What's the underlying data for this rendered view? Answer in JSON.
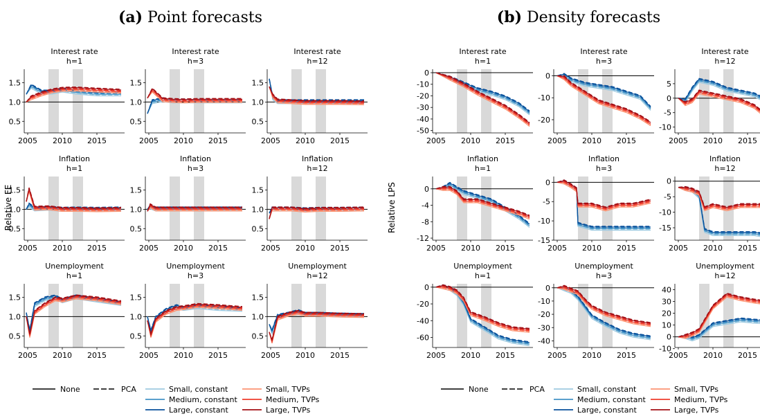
{
  "panel_titles": [
    {
      "tag": "(a)",
      "text": "Point forecasts"
    },
    {
      "tag": "(b)",
      "text": "Density forecasts"
    }
  ],
  "horizon_labels": [
    "h=1",
    "h=3",
    "h=12"
  ],
  "x_ticks": [
    "2005",
    "2010",
    "2015"
  ],
  "legend": {
    "methods": [
      "None",
      "PCA"
    ],
    "models": [
      {
        "label": "Small, constant",
        "color": "#9ecae1"
      },
      {
        "label": "Medium, constant",
        "color": "#4292c6"
      },
      {
        "label": "Large, constant",
        "color": "#08519c"
      },
      {
        "label": "Small, TVPs",
        "color": "#fc9272"
      },
      {
        "label": "Medium, TVPs",
        "color": "#ef3b2c"
      },
      {
        "label": "Large, TVPs",
        "color": "#a50f15"
      }
    ]
  },
  "recession_shading": [
    [
      2008.0,
      2009.5
    ],
    [
      2011.5,
      2013.0
    ]
  ],
  "chart_data": [
    {
      "type": "line",
      "panel": "(a) Point forecasts",
      "ylabel": "Relative FE",
      "xlim": [
        2004.5,
        2019
      ],
      "rows": [
        {
          "variable": "Interest rate",
          "ylim": [
            0.2,
            1.85
          ],
          "yticks": [
            "0.5",
            "1.0",
            "1.5"
          ],
          "ytick_values": [
            0.5,
            1.0,
            1.5
          ],
          "baseline": 1.0,
          "horizons": [
            {
              "h": "h=1",
              "x": [
                2004.8,
                2005.5,
                2007,
                2008.5,
                2010,
                2012,
                2015,
                2018.5
              ],
              "blue": [
                1.2,
                1.4,
                1.25,
                1.25,
                1.3,
                1.25,
                1.2,
                1.2
              ],
              "red": [
                1.0,
                1.1,
                1.2,
                1.28,
                1.32,
                1.33,
                1.3,
                1.27
              ]
            },
            {
              "h": "h=3",
              "x": [
                2004.8,
                2005.5,
                2007,
                2008.5,
                2010,
                2012,
                2015,
                2018.5
              ],
              "blue": [
                0.7,
                1.0,
                1.05,
                1.02,
                1.02,
                1.02,
                1.02,
                1.02
              ],
              "red": [
                1.1,
                1.3,
                1.05,
                1.03,
                1.02,
                1.03,
                1.03,
                1.03
              ]
            },
            {
              "h": "h=12",
              "x": [
                2004.8,
                2005.3,
                2006,
                2008,
                2010,
                2012,
                2015,
                2018.5
              ],
              "blue": [
                1.6,
                1.1,
                1.0,
                1.0,
                1.0,
                1.0,
                1.0,
                1.0
              ],
              "red": [
                1.4,
                1.15,
                1.02,
                1.0,
                0.98,
                0.98,
                0.98,
                0.97
              ]
            }
          ]
        },
        {
          "variable": "Inflation",
          "ylim": [
            0.2,
            1.85
          ],
          "yticks": [
            "0.5",
            "1.0",
            "1.5"
          ],
          "ytick_values": [
            0.5,
            1.0,
            1.5
          ],
          "baseline": 1.0,
          "horizons": [
            {
              "h": "h=1",
              "x": [
                2004.8,
                2005.2,
                2006,
                2008,
                2010,
                2012,
                2015,
                2018.5
              ],
              "blue": [
                1.0,
                1.1,
                1.0,
                1.02,
                0.99,
                1.0,
                0.99,
                1.0
              ],
              "red": [
                1.2,
                1.5,
                1.02,
                1.03,
                0.99,
                0.99,
                0.98,
                0.99
              ]
            },
            {
              "h": "h=3",
              "x": [
                2004.8,
                2005.2,
                2006,
                2008,
                2010,
                2012,
                2015,
                2018.5
              ],
              "blue": [
                1.0,
                1.05,
                1.0,
                1.0,
                1.0,
                1.0,
                1.0,
                1.0
              ],
              "red": [
                0.95,
                1.08,
                1.0,
                1.0,
                1.0,
                1.0,
                1.0,
                1.0
              ]
            },
            {
              "h": "h=12",
              "x": [
                2004.8,
                2005.2,
                2006,
                2008,
                2010,
                2012,
                2015,
                2018.5
              ],
              "blue": [
                0.9,
                1.0,
                1.0,
                1.0,
                0.98,
                0.99,
                0.99,
                1.0
              ],
              "red": [
                0.75,
                1.0,
                1.0,
                1.0,
                0.97,
                0.99,
                0.99,
                1.0
              ]
            }
          ]
        },
        {
          "variable": "Unemployment",
          "ylim": [
            0.2,
            1.85
          ],
          "yticks": [
            "0.5",
            "1.0",
            "1.5"
          ],
          "ytick_values": [
            0.5,
            1.0,
            1.5
          ],
          "baseline": 1.0,
          "horizons": [
            {
              "h": "h=1",
              "x": [
                2004.8,
                2005.3,
                2006,
                2007.5,
                2009,
                2010,
                2012,
                2015,
                2018.5
              ],
              "blue": [
                1.1,
                0.6,
                1.3,
                1.45,
                1.5,
                1.4,
                1.5,
                1.42,
                1.33
              ],
              "red": [
                1.0,
                0.5,
                1.1,
                1.3,
                1.45,
                1.42,
                1.5,
                1.45,
                1.35
              ]
            },
            {
              "h": "h=3",
              "x": [
                2004.8,
                2005.3,
                2006,
                2007.5,
                2009,
                2010,
                2012,
                2015,
                2018.5
              ],
              "blue": [
                1.0,
                0.6,
                0.95,
                1.15,
                1.25,
                1.2,
                1.25,
                1.2,
                1.18
              ],
              "red": [
                0.9,
                0.5,
                0.9,
                1.1,
                1.2,
                1.22,
                1.28,
                1.25,
                1.2
              ]
            },
            {
              "h": "h=12",
              "x": [
                2004.8,
                2005.2,
                2006,
                2007.5,
                2009,
                2010,
                2012,
                2015,
                2018.5
              ],
              "blue": [
                0.8,
                0.6,
                1.0,
                1.05,
                1.12,
                1.05,
                1.05,
                1.03,
                1.02
              ],
              "red": [
                0.6,
                0.35,
                0.95,
                1.05,
                1.1,
                1.05,
                1.05,
                1.03,
                1.02
              ]
            }
          ]
        }
      ]
    },
    {
      "type": "line",
      "panel": "(b) Density forecasts",
      "ylabel": "Relative LPS",
      "xlim": [
        2004.5,
        2019
      ],
      "rows": [
        {
          "variable": "Interest rate",
          "horizons": [
            {
              "h": "h=1",
              "ylim": [
                -52,
                3
              ],
              "yticks": [
                "0",
                "-10",
                "-20",
                "-30",
                "-40",
                "-50"
              ],
              "ytick_values": [
                0,
                -10,
                -20,
                -30,
                -40,
                -50
              ],
              "baseline": 0,
              "x": [
                2005,
                2007,
                2009,
                2011,
                2013,
                2015,
                2017,
                2018.5
              ],
              "blue": [
                0,
                -5,
                -10,
                -15,
                -18,
                -22,
                -28,
                -35
              ],
              "red": [
                0,
                -5,
                -11,
                -18,
                -24,
                -30,
                -38,
                -45
              ]
            },
            {
              "h": "h=3",
              "ylim": [
                -26,
                3
              ],
              "yticks": [
                "0",
                "-10",
                "-20"
              ],
              "ytick_values": [
                0,
                -10,
                -20
              ],
              "baseline": 0,
              "x": [
                2005,
                2006,
                2007,
                2009,
                2011,
                2013,
                2015,
                2017,
                2018.5
              ],
              "blue": [
                0,
                0,
                -2,
                -4,
                -5,
                -6,
                -8,
                -10,
                -15
              ],
              "red": [
                0,
                -1,
                -4,
                -8,
                -12,
                -14,
                -16,
                -19,
                -22
              ]
            },
            {
              "h": "h=12",
              "ylim": [
                -12,
                10
              ],
              "yticks": [
                "5",
                "0",
                "-5",
                "-10"
              ],
              "ytick_values": [
                5,
                0,
                -5,
                -10
              ],
              "baseline": 0,
              "x": [
                2005,
                2006,
                2007,
                2008,
                2010,
                2012,
                2014,
                2016,
                2018.5
              ],
              "blue": [
                0,
                -1,
                3,
                6,
                5,
                3,
                2,
                1,
                -2
              ],
              "red": [
                0,
                -2,
                -1,
                2,
                1,
                0,
                -1,
                -3,
                -8
              ]
            }
          ]
        },
        {
          "variable": "Inflation",
          "horizons": [
            {
              "h": "h=1",
              "ylim": [
                -12.5,
                3
              ],
              "yticks": [
                "0",
                "-4",
                "-8",
                "-12"
              ],
              "ytick_values": [
                0,
                -4,
                -8,
                -12
              ],
              "baseline": 0,
              "x": [
                2005,
                2006,
                2007,
                2008,
                2009,
                2011,
                2013,
                2015,
                2017,
                2018.5
              ],
              "blue": [
                0,
                0,
                1,
                0,
                -1,
                -2,
                -3,
                -5,
                -7,
                -9
              ],
              "red": [
                0,
                0,
                0,
                -1,
                -3,
                -3,
                -4,
                -5,
                -6,
                -7
              ]
            },
            {
              "h": "h=3",
              "ylim": [
                -15,
                1.5
              ],
              "yticks": [
                "0",
                "-5",
                "-10",
                "-15"
              ],
              "ytick_values": [
                0,
                -5,
                -10,
                -15
              ],
              "baseline": 0,
              "x": [
                2005,
                2006,
                2007,
                2007.8,
                2008,
                2010,
                2012,
                2014,
                2016,
                2018.5
              ],
              "blue": [
                0,
                0,
                -1,
                -2,
                -11,
                -12,
                -12,
                -12,
                -12,
                -12
              ],
              "red": [
                0,
                0,
                -1,
                -2,
                -6,
                -6,
                -7,
                -6,
                -6,
                -5
              ]
            },
            {
              "h": "h=12",
              "ylim": [
                -19,
                1.5
              ],
              "yticks": [
                "0",
                "-5",
                "-10",
                "-15"
              ],
              "ytick_values": [
                0,
                -5,
                -10,
                -15
              ],
              "baseline": 0,
              "x": [
                2005,
                2006,
                2007,
                2008,
                2008.8,
                2010,
                2012,
                2014,
                2016,
                2018.5
              ],
              "blue": [
                -2,
                -2.5,
                -3,
                -5,
                -16,
                -17,
                -17,
                -17,
                -17,
                -18
              ],
              "red": [
                -2,
                -2.5,
                -3,
                -4,
                -9,
                -8,
                -9,
                -8,
                -8,
                -8
              ]
            }
          ]
        },
        {
          "variable": "Unemployment",
          "horizons": [
            {
              "h": "h=1",
              "ylim": [
                -72,
                4
              ],
              "yticks": [
                "0",
                "-20",
                "-40",
                "-60"
              ],
              "ytick_values": [
                0,
                -20,
                -40,
                -60
              ],
              "baseline": 0,
              "x": [
                2005,
                2006,
                2007,
                2008,
                2009,
                2010,
                2012,
                2014,
                2016,
                2018.5
              ],
              "blue": [
                0,
                0,
                -2,
                -8,
                -20,
                -40,
                -50,
                -60,
                -65,
                -68
              ],
              "red": [
                0,
                0,
                -2,
                -6,
                -15,
                -32,
                -38,
                -45,
                -50,
                -52
              ]
            },
            {
              "h": "h=3",
              "ylim": [
                -45,
                3
              ],
              "yticks": [
                "0",
                "-10",
                "-20",
                "-30",
                "-40"
              ],
              "ytick_values": [
                0,
                -10,
                -20,
                -30,
                -40
              ],
              "baseline": 0,
              "x": [
                2005,
                2006,
                2007,
                2008,
                2009,
                2010,
                2012,
                2014,
                2016,
                2018.5
              ],
              "blue": [
                0,
                -1,
                -3,
                -8,
                -15,
                -22,
                -28,
                -33,
                -36,
                -38
              ],
              "red": [
                0,
                0,
                -2,
                -4,
                -10,
                -15,
                -20,
                -23,
                -26,
                -28
              ]
            },
            {
              "h": "h=12",
              "ylim": [
                -9,
                45
              ],
              "yticks": [
                "40",
                "30",
                "20",
                "10",
                "0",
                "-10"
              ],
              "ytick_values": [
                40,
                30,
                20,
                10,
                0,
                -10
              ],
              "baseline": 0,
              "x": [
                2005,
                2006,
                2007,
                2008,
                2009,
                2010,
                2012,
                2014,
                2016,
                2018.5
              ],
              "blue": [
                0,
                0,
                -2,
                0,
                5,
                10,
                12,
                14,
                13,
                12
              ],
              "red": [
                0,
                0,
                2,
                5,
                15,
                25,
                35,
                32,
                30,
                28
              ]
            }
          ]
        }
      ]
    }
  ]
}
